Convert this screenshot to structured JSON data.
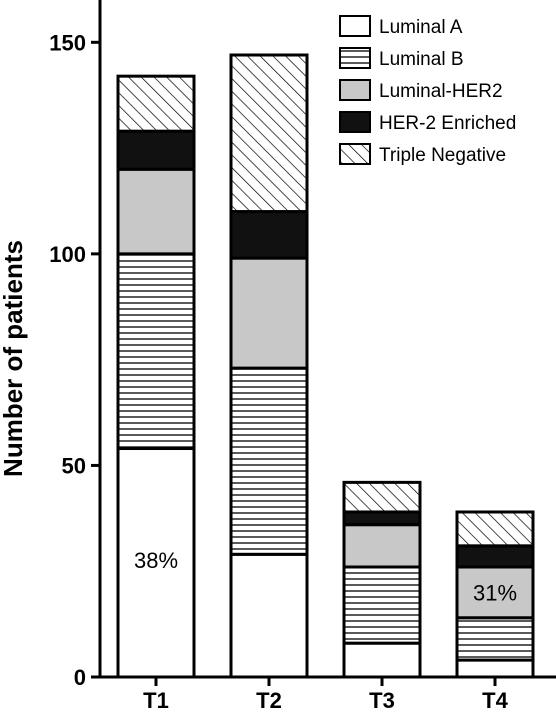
{
  "chart_data": {
    "type": "bar",
    "stacked": true,
    "categories": [
      "T1",
      "T2",
      "T3",
      "T4"
    ],
    "series": [
      {
        "name": "Luminal A",
        "values": [
          54,
          29,
          8,
          4
        ],
        "fill": "white"
      },
      {
        "name": "Luminal B",
        "values": [
          46,
          44,
          18,
          10
        ],
        "fill": "hlines"
      },
      {
        "name": "Luminal-HER2",
        "values": [
          20,
          26,
          10,
          12
        ],
        "fill": "#c8c8c8"
      },
      {
        "name": "HER-2 Enriched",
        "values": [
          9,
          11,
          3,
          5
        ],
        "fill": "#111111"
      },
      {
        "name": "Triple Negative",
        "values": [
          13,
          37,
          7,
          8
        ],
        "fill": "hatch"
      }
    ],
    "ylabel": "Number of patients",
    "xlabel": "",
    "ylim": [
      0,
      160
    ],
    "yticks": [
      0,
      50,
      100,
      150
    ],
    "legend_position": "top-right",
    "grid": false,
    "annotations": [
      {
        "category": "T1",
        "series": "Luminal A",
        "text": "38%"
      },
      {
        "category": "T4",
        "series": "Luminal-HER2",
        "text": "31%"
      }
    ]
  }
}
